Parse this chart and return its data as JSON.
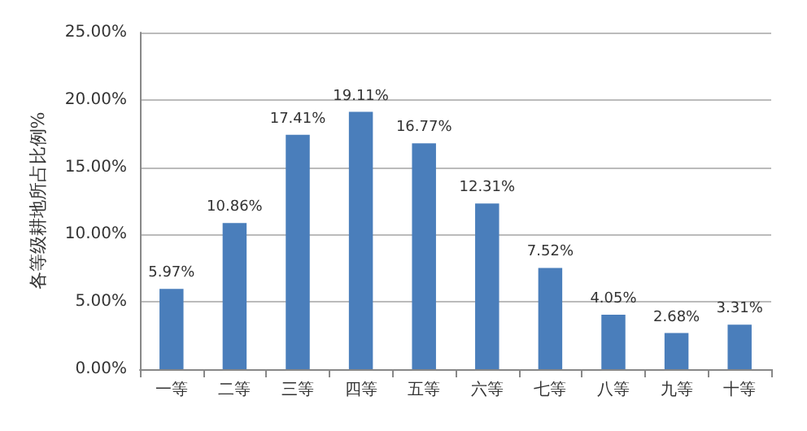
{
  "chart_data": {
    "type": "bar",
    "ylabel": "各等级耕地所占比例%",
    "categories": [
      "一等",
      "二等",
      "三等",
      "四等",
      "五等",
      "六等",
      "七等",
      "八等",
      "九等",
      "十等"
    ],
    "values": [
      5.97,
      10.86,
      17.41,
      19.11,
      16.77,
      12.31,
      7.52,
      4.05,
      2.68,
      3.31
    ],
    "value_labels": [
      "5.97%",
      "10.86%",
      "17.41%",
      "19.11%",
      "16.77%",
      "12.31%",
      "7.52%",
      "4.05%",
      "2.68%",
      "3.31%"
    ],
    "color": "#4a7ebb",
    "ylim": [
      0,
      25
    ],
    "yticks": [
      {
        "value": 0,
        "label": "0.00%"
      },
      {
        "value": 5,
        "label": "5.00%"
      },
      {
        "value": 10,
        "label": "10.00%"
      },
      {
        "value": 15,
        "label": "15.00%"
      },
      {
        "value": 20,
        "label": "20.00%"
      },
      {
        "value": 25,
        "label": "25.00%"
      }
    ],
    "grid": "y"
  }
}
